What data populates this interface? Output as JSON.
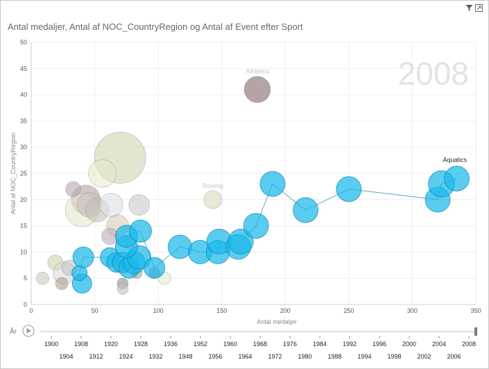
{
  "title": "Antal medaljer, Antal af NOC_CountryRegion og Antal af Event efter Sport",
  "play_axis": {
    "label": "År",
    "current": "2008",
    "years_top": [
      "1900",
      "1908",
      "1920",
      "1928",
      "1936",
      "1952",
      "1960",
      "1968",
      "1976",
      "1984",
      "1992",
      "1996",
      "2000",
      "2004",
      "2008"
    ],
    "years_bottom": [
      "1904",
      "1912",
      "1924",
      "1932",
      "1948",
      "1956",
      "1964",
      "1972",
      "1980",
      "1988",
      "1994",
      "1998",
      "2002",
      "2006"
    ]
  },
  "colors": {
    "highlight": "#1ab8ea",
    "highlight_stroke": "#0f86b0",
    "faded_edge": "#8a8a8a",
    "grid": "#eeeeee",
    "watermark": "#e3e3e3",
    "trail": "#5aa9c9"
  },
  "chart_data": {
    "type": "scatter",
    "subtype": "bubble",
    "title": "Antal medaljer, Antal af NOC_CountryRegion og Antal af Event efter Sport",
    "xlabel": "Antal medaljer",
    "ylabel": "Antal af NOC_CountryRegion",
    "xlim": [
      0,
      350
    ],
    "ylim": [
      0,
      50
    ],
    "xticks": [
      0,
      50,
      100,
      150,
      200,
      250,
      300,
      350
    ],
    "yticks": [
      0,
      5,
      10,
      15,
      20,
      25,
      30,
      35,
      40,
      45,
      50
    ],
    "grid": true,
    "watermark_year": "2008",
    "highlighted_series": {
      "name": "Aquatics",
      "trail": [
        {
          "x": 40,
          "y": 4,
          "r": 14
        },
        {
          "x": 38,
          "y": 6,
          "r": 11
        },
        {
          "x": 41,
          "y": 9,
          "r": 15
        },
        {
          "x": 62,
          "y": 9,
          "r": 14
        },
        {
          "x": 67,
          "y": 8,
          "r": 14
        },
        {
          "x": 72,
          "y": 8,
          "r": 15
        },
        {
          "x": 77,
          "y": 7,
          "r": 15
        },
        {
          "x": 81,
          "y": 8,
          "r": 16
        },
        {
          "x": 85,
          "y": 9,
          "r": 17
        },
        {
          "x": 75,
          "y": 11,
          "r": 16
        },
        {
          "x": 75,
          "y": 13,
          "r": 16
        },
        {
          "x": 86,
          "y": 14,
          "r": 16
        },
        {
          "x": 97,
          "y": 7,
          "r": 15
        },
        {
          "x": 117,
          "y": 11,
          "r": 17
        },
        {
          "x": 133,
          "y": 10,
          "r": 17
        },
        {
          "x": 147,
          "y": 10,
          "r": 17
        },
        {
          "x": 148,
          "y": 12,
          "r": 18
        },
        {
          "x": 163,
          "y": 11,
          "r": 18
        },
        {
          "x": 165,
          "y": 12,
          "r": 18
        },
        {
          "x": 177,
          "y": 15,
          "r": 18
        },
        {
          "x": 190,
          "y": 23,
          "r": 18
        },
        {
          "x": 216,
          "y": 18,
          "r": 18
        },
        {
          "x": 250,
          "y": 22,
          "r": 18
        },
        {
          "x": 320,
          "y": 20,
          "r": 18
        },
        {
          "x": 323,
          "y": 23,
          "r": 19
        },
        {
          "x": 335,
          "y": 24,
          "r": 18
        }
      ]
    },
    "other_bubbles": [
      {
        "name": "Athletics",
        "x": 178,
        "y": 41,
        "r": 19,
        "color": "#9b8585",
        "opacity": 0.75
      },
      {
        "name": "",
        "x": 70,
        "y": 28,
        "r": 37,
        "color": "#c6d2a8",
        "opacity": 0.55
      },
      {
        "name": "",
        "x": 56,
        "y": 25,
        "r": 20,
        "color": "#e7e7c4",
        "opacity": 0.55
      },
      {
        "name": "",
        "x": 43,
        "y": 20,
        "r": 21,
        "color": "#b0a5a0",
        "opacity": 0.6
      },
      {
        "name": "",
        "x": 40,
        "y": 18,
        "r": 24,
        "color": "#e6e6c8",
        "opacity": 0.55
      },
      {
        "name": "",
        "x": 46,
        "y": 19,
        "r": 18,
        "color": "#c9bfc7",
        "opacity": 0.55
      },
      {
        "name": "",
        "x": 52,
        "y": 18,
        "r": 17,
        "color": "#c3bdb3",
        "opacity": 0.55
      },
      {
        "name": "",
        "x": 63,
        "y": 19,
        "r": 17,
        "color": "#dfdfe6",
        "opacity": 0.6
      },
      {
        "name": "",
        "x": 85,
        "y": 19,
        "r": 15,
        "color": "#c9c9c9",
        "opacity": 0.6
      },
      {
        "name": "",
        "x": 33,
        "y": 22,
        "r": 11,
        "color": "#b5a9b5",
        "opacity": 0.6
      },
      {
        "name": "Rowing",
        "x": 143,
        "y": 20,
        "r": 13,
        "color": "#e4dcc8",
        "opacity": 0.7
      },
      {
        "name": "",
        "x": 68,
        "y": 15,
        "r": 16,
        "color": "#d8cbb9",
        "opacity": 0.6
      },
      {
        "name": "",
        "x": 62,
        "y": 13,
        "r": 12,
        "color": "#b8aeb8",
        "opacity": 0.6
      },
      {
        "name": "",
        "x": 19,
        "y": 8,
        "r": 11,
        "color": "#d0d0b0",
        "opacity": 0.6
      },
      {
        "name": "",
        "x": 26,
        "y": 6,
        "r": 16,
        "color": "#d8d8d8",
        "opacity": 0.55
      },
      {
        "name": "",
        "x": 30,
        "y": 7,
        "r": 11,
        "color": "#c2c2c2",
        "opacity": 0.6
      },
      {
        "name": "",
        "x": 9,
        "y": 5,
        "r": 9,
        "color": "#c4d1b8",
        "opacity": 0.6
      },
      {
        "name": "",
        "x": 24,
        "y": 4,
        "r": 9,
        "color": "#a89e8e",
        "opacity": 0.6
      },
      {
        "name": "",
        "x": 72,
        "y": 4,
        "r": 8,
        "color": "#8f8f8f",
        "opacity": 0.6
      },
      {
        "name": "",
        "x": 72,
        "y": 3,
        "r": 8,
        "color": "#bfbfbf",
        "opacity": 0.6
      },
      {
        "name": "",
        "x": 83,
        "y": 6,
        "r": 8,
        "color": "#a0a0a0",
        "opacity": 0.6
      },
      {
        "name": "",
        "x": 105,
        "y": 5,
        "r": 9,
        "color": "#e6ecd4",
        "opacity": 0.6
      },
      {
        "name": "",
        "x": 97,
        "y": 6,
        "r": 8,
        "color": "#7f7f7f",
        "opacity": 0.5
      }
    ]
  }
}
